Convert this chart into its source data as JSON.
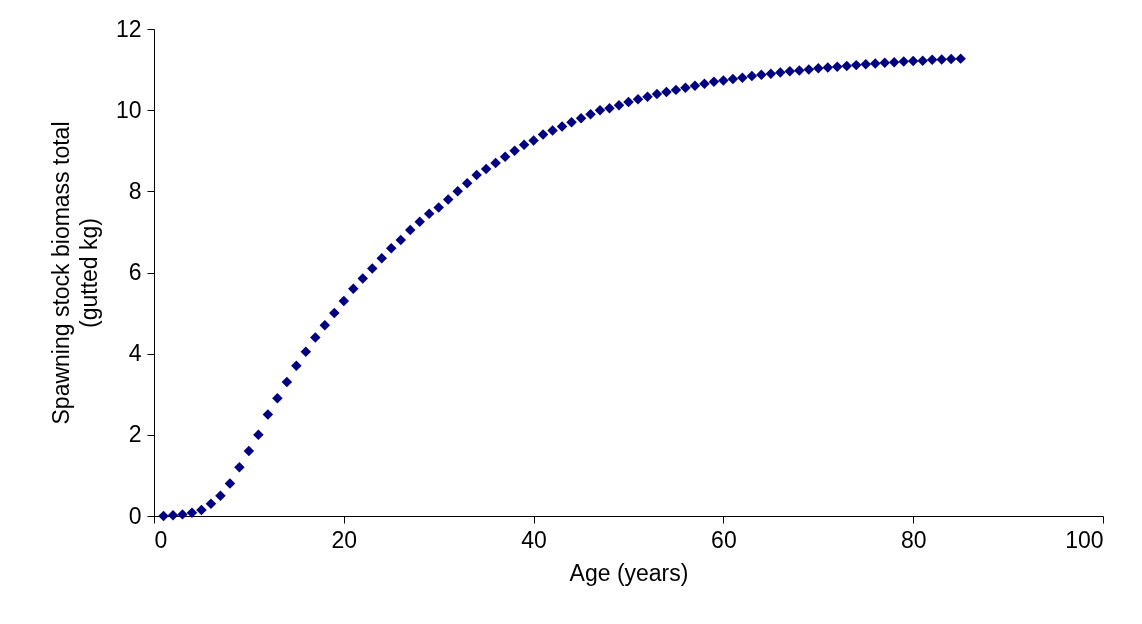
{
  "chart_data": {
    "type": "scatter",
    "xlabel": "Age (years)",
    "ylabel": "Spawning stock biomass total\n(gutted kg)",
    "x": [
      1,
      2,
      3,
      4,
      5,
      6,
      7,
      8,
      9,
      10,
      11,
      12,
      13,
      14,
      15,
      16,
      17,
      18,
      19,
      20,
      21,
      22,
      23,
      24,
      25,
      26,
      27,
      28,
      29,
      30,
      31,
      32,
      33,
      34,
      35,
      36,
      37,
      38,
      39,
      40,
      41,
      42,
      43,
      44,
      45,
      46,
      47,
      48,
      49,
      50,
      51,
      52,
      53,
      54,
      55,
      56,
      57,
      58,
      59,
      60,
      61,
      62,
      63,
      64,
      65,
      66,
      67,
      68,
      69,
      70,
      71,
      72,
      73,
      74,
      75,
      76,
      77,
      78,
      79,
      80,
      81,
      82,
      83,
      84,
      85
    ],
    "series": [
      {
        "color": "#000080",
        "values": [
          0,
          0.02,
          0.04,
          0.08,
          0.15,
          0.3,
          0.5,
          0.8,
          1.2,
          1.6,
          2.0,
          2.5,
          2.9,
          3.3,
          3.7,
          4.05,
          4.4,
          4.7,
          5.0,
          5.3,
          5.6,
          5.85,
          6.1,
          6.35,
          6.6,
          6.8,
          7.05,
          7.25,
          7.45,
          7.6,
          7.8,
          8.0,
          8.2,
          8.4,
          8.55,
          8.7,
          8.85,
          9.0,
          9.15,
          9.25,
          9.4,
          9.5,
          9.6,
          9.7,
          9.8,
          9.9,
          10.0,
          10.05,
          10.12,
          10.2,
          10.27,
          10.33,
          10.4,
          10.45,
          10.5,
          10.55,
          10.6,
          10.65,
          10.7,
          10.73,
          10.77,
          10.8,
          10.84,
          10.87,
          10.9,
          10.93,
          10.96,
          10.98,
          11.0,
          11.03,
          11.05,
          11.07,
          11.09,
          11.11,
          11.13,
          11.15,
          11.17,
          11.18,
          11.2,
          11.21,
          11.22,
          11.24,
          11.25,
          11.26,
          11.27
        ]
      }
    ],
    "marker": "diamond",
    "xlim": [
      0,
      100
    ],
    "xticks": [
      0,
      20,
      40,
      60,
      80,
      100
    ],
    "ylim": [
      0,
      12
    ],
    "yticks": [
      0,
      2,
      4,
      6,
      8,
      10,
      12
    ],
    "grid": false
  }
}
